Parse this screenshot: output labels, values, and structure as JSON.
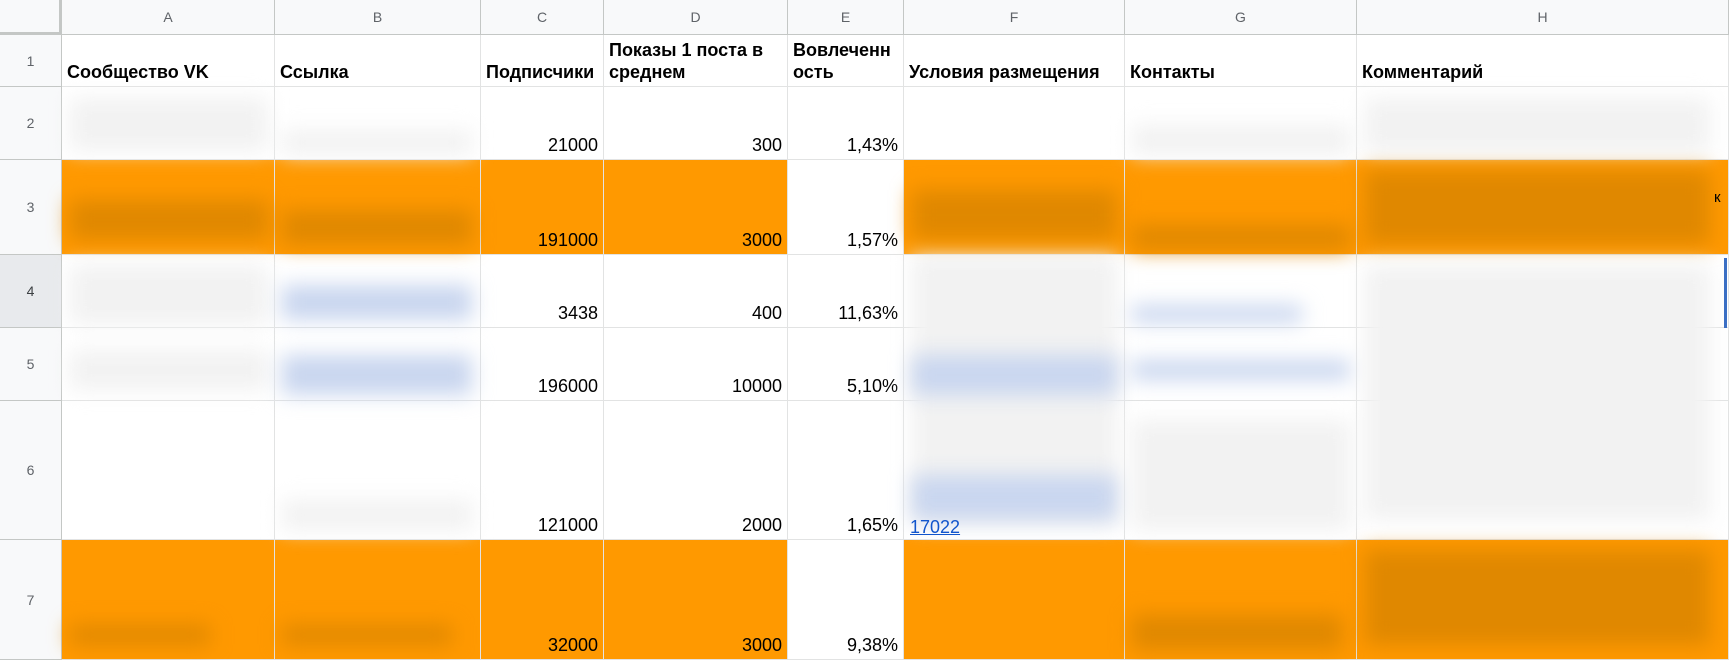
{
  "columns": [
    "A",
    "B",
    "C",
    "D",
    "E",
    "F",
    "G",
    "H"
  ],
  "rows": [
    "1",
    "2",
    "3",
    "4",
    "5",
    "6",
    "7"
  ],
  "selected_row": "4",
  "headers": {
    "A": "Сообщество VK",
    "B": "Ссылка",
    "C": "Подписчики",
    "D": "Показы 1 поста в среднем",
    "E": "Вовлеченн ость",
    "F": "Условия размещения",
    "G": "Контакты",
    "H": "Комментарий"
  },
  "data_rows": [
    {
      "row": "2",
      "subscribers": "21000",
      "views": "300",
      "engagement": "1,43%",
      "highlight": false
    },
    {
      "row": "3",
      "subscribers": "191000",
      "views": "3000",
      "engagement": "1,57%",
      "highlight": true
    },
    {
      "row": "4",
      "subscribers": "3438",
      "views": "400",
      "engagement": "11,63%",
      "highlight": false
    },
    {
      "row": "5",
      "subscribers": "196000",
      "views": "10000",
      "engagement": "5,10%",
      "highlight": false
    },
    {
      "row": "6",
      "subscribers": "121000",
      "views": "2000",
      "engagement": "1,65%",
      "highlight": false
    },
    {
      "row": "7",
      "subscribers": "32000",
      "views": "3000",
      "engagement": "9,38%",
      "highlight": true
    }
  ],
  "fragments": {
    "row6_link_fragment": "17022",
    "row3_overflow_char": "к"
  },
  "colors": {
    "highlight": "#ff9900",
    "header_bg": "#f8f9fa",
    "link": "#1155cc",
    "selection": "#3b6fc4"
  }
}
